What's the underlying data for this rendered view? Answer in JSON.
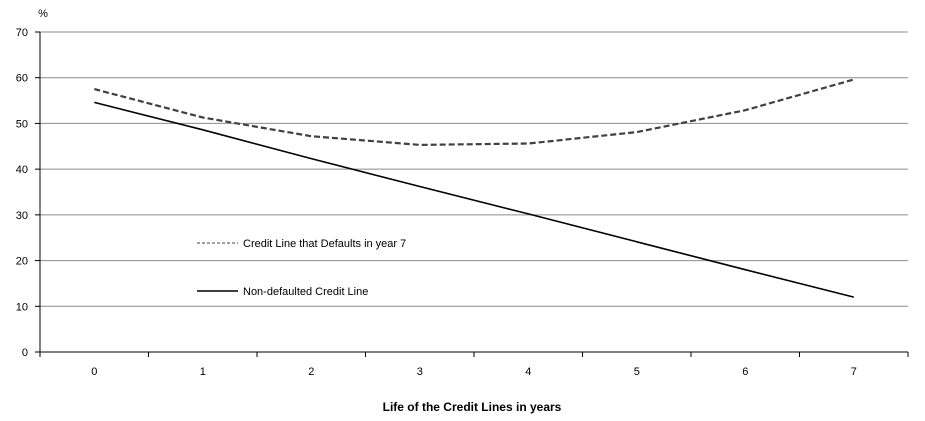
{
  "chart_data": {
    "type": "line",
    "title": "",
    "ylabel": "%",
    "xlabel": "Life of the Credit Lines in years",
    "x": [
      0,
      1,
      2,
      3,
      4,
      5,
      6,
      7
    ],
    "xlim": [
      0,
      7
    ],
    "ylim": [
      0,
      70
    ],
    "y_ticks": [
      0,
      10,
      20,
      30,
      40,
      50,
      60,
      70
    ],
    "grid": "horizontal",
    "legend_position": "center-left",
    "series": [
      {
        "name": "Credit Line that Defaults in year 7",
        "style": "dashed",
        "color": "#404040",
        "values": [
          57.5,
          51.3,
          47.2,
          45.3,
          45.6,
          48.1,
          52.9,
          59.6
        ]
      },
      {
        "name": "Non-defaulted Credit Line",
        "style": "solid",
        "color": "#000000",
        "values": [
          54.6,
          48.6,
          42.3,
          36.2,
          30.2,
          24.1,
          18.0,
          12.0
        ]
      }
    ]
  }
}
